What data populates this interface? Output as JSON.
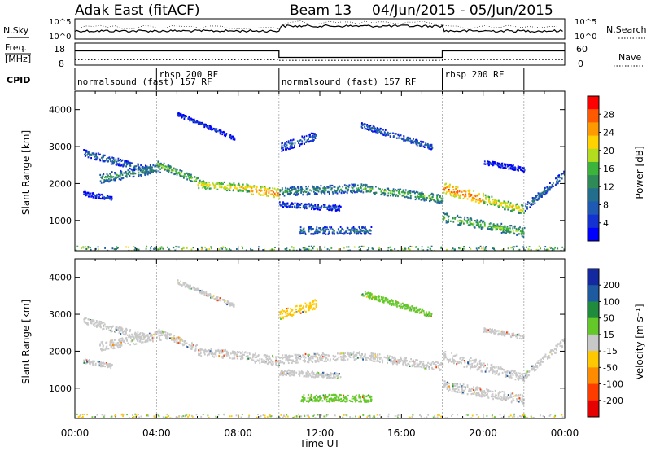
{
  "chart_data": {
    "type": "heatmap",
    "header": {
      "radar": "Adak East (fitACF)",
      "beam": "Beam 13",
      "date_range": "04/Jun/2015 - 05/Jun/2015"
    },
    "noise_panel": {
      "left_label": "N.Sky",
      "right_label": "N.Search",
      "ticks_left": [
        "10^5",
        "10^0"
      ],
      "ticks_right": [
        "10^5",
        "10^0"
      ]
    },
    "freq_panel": {
      "left_label_1": "Freq.",
      "left_label_2": "[MHz]",
      "right_label": "Nave",
      "ticks_left": [
        "18",
        "8"
      ],
      "ticks_right": [
        "60",
        "0"
      ],
      "freq_series": [
        {
          "t": 0,
          "f": 14.5
        },
        {
          "t": 10,
          "f": 14.5
        },
        {
          "t": 10,
          "f": 11.5
        },
        {
          "t": 18,
          "f": 11.5
        },
        {
          "t": 18,
          "f": 14.5
        },
        {
          "t": 24,
          "f": 14.5
        }
      ],
      "nave_series": [
        {
          "t": 0,
          "n": 15
        },
        {
          "t": 10,
          "n": 15
        },
        {
          "t": 10,
          "n": 13
        },
        {
          "t": 18,
          "n": 13
        },
        {
          "t": 18,
          "n": 15
        },
        {
          "t": 24,
          "n": 15
        }
      ]
    },
    "cpid": {
      "label": "CPID",
      "segments": [
        {
          "start": 0,
          "end": 4,
          "text": "normalsound (fast) 157 RF",
          "row": 2
        },
        {
          "start": 4,
          "end": 10,
          "text": "rbsp 200 RF",
          "row": 1
        },
        {
          "start": 10,
          "end": 18,
          "text": "normalsound (fast) 157 RF",
          "row": 2
        },
        {
          "start": 18,
          "end": 22,
          "text": "rbsp 200 RF",
          "row": 1
        }
      ]
    },
    "x_axis": {
      "label": "Time UT",
      "range": [
        0,
        24
      ],
      "ticks": [
        0,
        4,
        8,
        12,
        16,
        20,
        24
      ],
      "tick_labels": [
        "00:00",
        "04:00",
        "08:00",
        "12:00",
        "16:00",
        "20:00",
        "00:00"
      ]
    },
    "y_axis": {
      "label": "Slant Range [km]",
      "range": [
        180,
        4500
      ],
      "ticks": [
        1000,
        2000,
        3000,
        4000
      ],
      "tick_labels": [
        "1000",
        "2000",
        "3000",
        "4000"
      ]
    },
    "power_scale": {
      "title": "Power [dB]",
      "tick_labels": [
        "28",
        "24",
        "20",
        "16",
        "12",
        "8",
        "4"
      ],
      "colors": [
        "#ff0000",
        "#ff5a00",
        "#ff9a00",
        "#ffd200",
        "#b4dc1e",
        "#3cb43c",
        "#2e8b57",
        "#236e8c",
        "#1e5ab4",
        "#1432d2",
        "#0000ff"
      ]
    },
    "velocity_scale": {
      "title": "Velocity [m s⁻¹]",
      "tick_labels": [
        "200",
        "100",
        "50",
        "15",
        "-15",
        "-50",
        "-100",
        "-200"
      ],
      "colors": [
        "#1428a0",
        "#1e5aa0",
        "#1e8c3c",
        "#64c828",
        "#c8c8c8",
        "#ffc800",
        "#ff8c00",
        "#ff3c00",
        "#e60000"
      ]
    },
    "series": [
      {
        "panel": "power",
        "bands": [
          {
            "t": [
              0.4,
              1.8
            ],
            "r": [
              1750,
              1620
            ],
            "w": 120,
            "v": 6
          },
          {
            "t": [
              0.4,
              3.8
            ],
            "r": [
              2850,
              2350
            ],
            "w": 200,
            "v": 10
          },
          {
            "t": [
              1.2,
              4.2
            ],
            "r": [
              2150,
              2450
            ],
            "w": 250,
            "v": 14
          },
          {
            "t": [
              4.0,
              6.0
            ],
            "r": [
              2550,
              2100
            ],
            "w": 180,
            "v": 18
          },
          {
            "t": [
              6.0,
              8.5
            ],
            "r": [
              2000,
              1900
            ],
            "w": 220,
            "v": 22
          },
          {
            "t": [
              8.5,
              10.0
            ],
            "r": [
              1850,
              1750
            ],
            "w": 260,
            "v": 26
          },
          {
            "t": [
              5.0,
              7.8
            ],
            "r": [
              3900,
              3250
            ],
            "w": 100,
            "v": 6
          },
          {
            "t": [
              10.0,
              11.8
            ],
            "r": [
              3000,
              3300
            ],
            "w": 250,
            "v": 9
          },
          {
            "t": [
              10.0,
              13.0
            ],
            "r": [
              1450,
              1350
            ],
            "w": 150,
            "v": 8
          },
          {
            "t": [
              10.0,
              14.0
            ],
            "r": [
              1800,
              1900
            ],
            "w": 230,
            "v": 14
          },
          {
            "t": [
              14.0,
              18.0
            ],
            "r": [
              1900,
              1600
            ],
            "w": 220,
            "v": 17
          },
          {
            "t": [
              11.0,
              14.5
            ],
            "r": [
              750,
              750
            ],
            "w": 200,
            "v": 11
          },
          {
            "t": [
              14.0,
              17.5
            ],
            "r": [
              3600,
              3000
            ],
            "w": 150,
            "v": 10
          },
          {
            "t": [
              18.0,
              20.0
            ],
            "r": [
              1900,
              1600
            ],
            "w": 300,
            "v": 28
          },
          {
            "t": [
              20.0,
              22.0
            ],
            "r": [
              1600,
              1300
            ],
            "w": 250,
            "v": 22
          },
          {
            "t": [
              22.0,
              24.0
            ],
            "r": [
              1350,
              2300
            ],
            "w": 200,
            "v": 11
          },
          {
            "t": [
              18.0,
              22.0
            ],
            "r": [
              1100,
              700
            ],
            "w": 250,
            "v": 17
          },
          {
            "t": [
              20.0,
              22.0
            ],
            "r": [
              2600,
              2400
            ],
            "w": 120,
            "v": 5
          }
        ]
      },
      {
        "panel": "velocity",
        "bands": [
          {
            "t": [
              0.4,
              1.8
            ],
            "r": [
              1750,
              1620
            ],
            "w": 120,
            "v": 0
          },
          {
            "t": [
              0.4,
              3.8
            ],
            "r": [
              2850,
              2350
            ],
            "w": 200,
            "v": 0
          },
          {
            "t": [
              1.2,
              4.2
            ],
            "r": [
              2150,
              2450
            ],
            "w": 250,
            "v": 0
          },
          {
            "t": [
              4.0,
              6.0
            ],
            "r": [
              2550,
              2100
            ],
            "w": 180,
            "v": 0
          },
          {
            "t": [
              6.0,
              8.5
            ],
            "r": [
              2000,
              1900
            ],
            "w": 220,
            "v": 0
          },
          {
            "t": [
              8.5,
              10.0
            ],
            "r": [
              1850,
              1750
            ],
            "w": 260,
            "v": 0
          },
          {
            "t": [
              5.0,
              7.8
            ],
            "r": [
              3900,
              3250
            ],
            "w": 100,
            "v": 0
          },
          {
            "t": [
              10.0,
              11.8
            ],
            "r": [
              3000,
              3300
            ],
            "w": 250,
            "v": -30
          },
          {
            "t": [
              10.0,
              13.0
            ],
            "r": [
              1450,
              1350
            ],
            "w": 150,
            "v": 0
          },
          {
            "t": [
              10.0,
              14.0
            ],
            "r": [
              1800,
              1900
            ],
            "w": 230,
            "v": 0
          },
          {
            "t": [
              14.0,
              18.0
            ],
            "r": [
              1900,
              1600
            ],
            "w": 220,
            "v": 0
          },
          {
            "t": [
              11.0,
              14.5
            ],
            "r": [
              750,
              750
            ],
            "w": 200,
            "v": 30
          },
          {
            "t": [
              14.0,
              17.5
            ],
            "r": [
              3600,
              3000
            ],
            "w": 150,
            "v": 30
          },
          {
            "t": [
              18.0,
              20.0
            ],
            "r": [
              1900,
              1600
            ],
            "w": 300,
            "v": 0
          },
          {
            "t": [
              20.0,
              22.0
            ],
            "r": [
              1600,
              1300
            ],
            "w": 250,
            "v": 0
          },
          {
            "t": [
              22.0,
              24.0
            ],
            "r": [
              1350,
              2300
            ],
            "w": 200,
            "v": 0
          },
          {
            "t": [
              18.0,
              22.0
            ],
            "r": [
              1100,
              700
            ],
            "w": 250,
            "v": 0
          },
          {
            "t": [
              20.0,
              22.0
            ],
            "r": [
              2600,
              2400
            ],
            "w": 120,
            "v": 0
          }
        ]
      }
    ]
  }
}
